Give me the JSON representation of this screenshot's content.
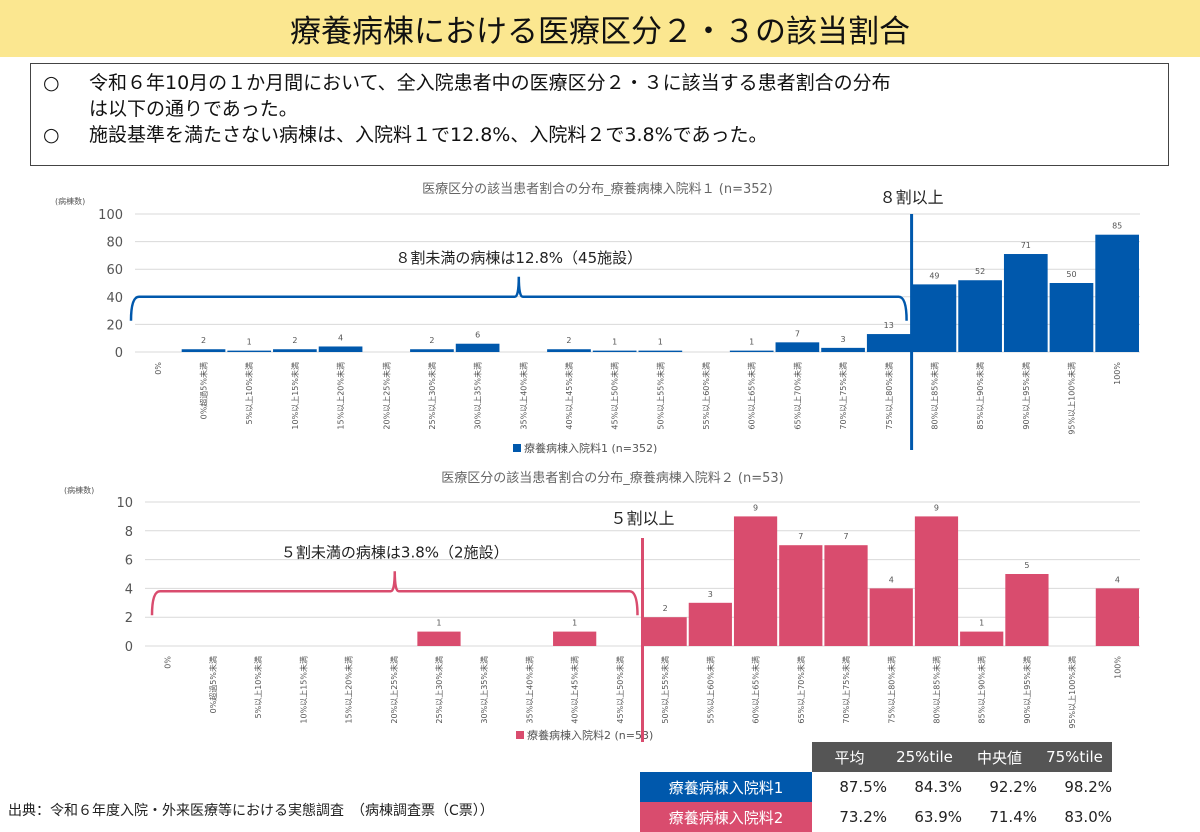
{
  "title": "療養病棟における医療区分２・３の該当割合",
  "summary": {
    "bullet": "○",
    "lines": [
      "令和６年10月の１か月間において、全入院患者中の医療区分２・３に該当する患者割合の分布",
      "は以下の通りであった。",
      "施設基準を満たさない病棟は、入院料１で12.8%、入院料２で3.8%であった。"
    ]
  },
  "colors": {
    "series1": "#0058ac",
    "series2": "#d94c6e",
    "header": "#555555",
    "title_bg": "#fbe790"
  },
  "chart_data": [
    {
      "type": "bar",
      "title": "医療区分の該当患者割合の分布_療養病棟入院料１ (n=352)",
      "ylabel": "(病棟数)",
      "xlabel": "",
      "ylim": [
        0,
        100
      ],
      "yticks": [
        0,
        20,
        40,
        60,
        80,
        100
      ],
      "grid": true,
      "legend": "bottom-center",
      "categories": [
        "0%",
        "0%超過5%未満",
        "5%以上10%未満",
        "10%以上15%未満",
        "15%以上20%未満",
        "20%以上25%未満",
        "25%以上30%未満",
        "30%以上35%未満",
        "35%以上40%未満",
        "40%以上45%未満",
        "45%以上50%未満",
        "50%以上55%未満",
        "55%以上60%未満",
        "60%以上65%未満",
        "65%以上70%未満",
        "70%以上75%未満",
        "75%以上80%未満",
        "80%以上85%未満",
        "85%以上90%未満",
        "90%以上95%未満",
        "95%以上100%未満",
        "100%"
      ],
      "series": [
        {
          "name": "療養病棟入院料1 (n=352)",
          "values": [
            0,
            2,
            1,
            2,
            4,
            0,
            2,
            6,
            0,
            2,
            1,
            1,
            0,
            1,
            7,
            3,
            13,
            49,
            52,
            71,
            50,
            85
          ],
          "labels": [
            "",
            "2",
            "1",
            "2",
            "4",
            "",
            "2",
            "6",
            "",
            "2",
            "1",
            "1",
            "",
            "1",
            "7",
            "3",
            "13",
            "49",
            "52",
            "71",
            "50",
            "85"
          ]
        }
      ],
      "annotations": {
        "threshold_label": "８割以上",
        "threshold_after_category": 16,
        "brace_label": "８割未満の病棟は12.8%（45施設）",
        "brace_level": 40
      }
    },
    {
      "type": "bar",
      "title": "医療区分の該当患者割合の分布_療養病棟入院料２ (n=53)",
      "ylabel": "(病棟数)",
      "xlabel": "",
      "ylim": [
        0,
        10
      ],
      "yticks": [
        0,
        2,
        4,
        6,
        8,
        10
      ],
      "grid": true,
      "legend": "bottom-center",
      "categories": [
        "0%",
        "0%超過5%未満",
        "5%以上10%未満",
        "10%以上15%未満",
        "15%以上20%未満",
        "20%以上25%未満",
        "25%以上30%未満",
        "30%以上35%未満",
        "35%以上40%未満",
        "40%以上45%未満",
        "45%以上50%未満",
        "50%以上55%未満",
        "55%以上60%未満",
        "60%以上65%未満",
        "65%以上70%未満",
        "70%以上75%未満",
        "75%以上80%未満",
        "80%以上85%未満",
        "85%以上90%未満",
        "90%以上95%未満",
        "95%以上100%未満",
        "100%"
      ],
      "series": [
        {
          "name": "療養病棟入院料2 (n=53)",
          "values": [
            0,
            0,
            0,
            0,
            0,
            0,
            1,
            0,
            0,
            1,
            0,
            2,
            3,
            9,
            7,
            7,
            4,
            9,
            1,
            5,
            0,
            4
          ],
          "labels": [
            "",
            "",
            "",
            "",
            "",
            "",
            "1",
            "",
            "",
            "1",
            "",
            "2",
            "3",
            "9",
            "7",
            "7",
            "4",
            "9",
            "1",
            "5",
            "",
            "4"
          ]
        }
      ],
      "annotations": {
        "threshold_label": "５割以上",
        "threshold_after_category": 10,
        "brace_label": "５割未満の病棟は3.8%（2施設）",
        "brace_level": 3.8
      }
    }
  ],
  "stats_table": {
    "headers": [
      "平均",
      "25%tile",
      "中央値",
      "75%tile"
    ],
    "rows": [
      {
        "label": "療養病棟入院料1",
        "values": [
          "87.5%",
          "84.3%",
          "92.2%",
          "98.2%"
        ]
      },
      {
        "label": "療養病棟入院料2",
        "values": [
          "73.2%",
          "63.9%",
          "71.4%",
          "83.0%"
        ]
      }
    ]
  },
  "source": "出典：令和６年度入院・外来医療等における実態調査　（病棟調査票（C票））"
}
